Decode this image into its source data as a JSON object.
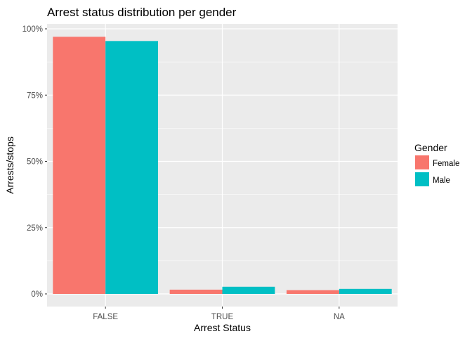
{
  "chart_data": {
    "type": "bar",
    "title": "Arrest status distribution per gender",
    "xlabel": "Arrest Status",
    "ylabel": "Arrests/stops",
    "categories": [
      "FALSE",
      "TRUE",
      "NA"
    ],
    "series": [
      {
        "name": "Female",
        "color": "#F8766D",
        "values": [
          97.0,
          1.6,
          1.4
        ]
      },
      {
        "name": "Male",
        "color": "#00BFC4",
        "values": [
          95.4,
          2.7,
          1.9
        ]
      }
    ],
    "ylim": [
      0,
      100
    ],
    "yticks": [
      0,
      25,
      50,
      75,
      100
    ],
    "ytick_labels": [
      "0%",
      "25%",
      "50%",
      "75%",
      "100%"
    ],
    "grid": true,
    "legend": {
      "title": "Gender",
      "position": "right"
    },
    "panel_background": "#EBEBEB",
    "grid_color": "#FFFFFF"
  }
}
